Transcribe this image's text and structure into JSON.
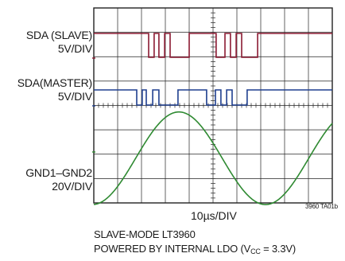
{
  "chart_data": {
    "type": "line",
    "title": "",
    "grid": true,
    "grid_divisions": {
      "x": 10,
      "y": 8
    },
    "xlabel": "10µs/DIV",
    "x_per_div_us": 10,
    "x_range_us": [
      0,
      100
    ],
    "figure_tag": "3960 TA01b",
    "caption_line1": "SLAVE-MODE LT3960",
    "caption_line2_prefix": "POWERED BY INTERNAL LDO (V",
    "caption_line2_sub": "CC",
    "caption_line2_suffix": " = 3.3V)",
    "series": [
      {
        "name": "SDA (SLAVE)",
        "scale": "5V/DIV",
        "color": "#8b1a32",
        "x": [
          0,
          23,
          23,
          25.3,
          25.3,
          27.3,
          27.3,
          29.7,
          29.7,
          32,
          32,
          40,
          40,
          51.3,
          51.3,
          55,
          55,
          57.3,
          57.3,
          59.7,
          59.7,
          62,
          62,
          68.7,
          68.7,
          70.7,
          70.7,
          100
        ],
        "values": [
          1,
          1,
          0,
          0,
          1,
          1,
          0,
          0,
          1,
          1,
          0,
          0,
          1,
          1,
          0,
          0,
          1,
          1,
          0,
          0,
          1,
          1,
          0,
          0,
          1,
          1,
          1,
          1
        ]
      },
      {
        "name": "SDA(MASTER)",
        "scale": "5V/DIV",
        "color": "#1f3f8f",
        "x": [
          0,
          18,
          18,
          20.3,
          20.3,
          22,
          22,
          24.7,
          24.7,
          27.3,
          27.3,
          35.3,
          35.3,
          47.3,
          47.3,
          51,
          51,
          53.3,
          53.3,
          55.7,
          55.7,
          58,
          58,
          64.3,
          64.3,
          67,
          67,
          100
        ],
        "values": [
          1,
          1,
          0,
          0,
          1,
          1,
          0,
          0,
          1,
          1,
          0,
          0,
          1,
          1,
          0,
          0,
          1,
          1,
          0,
          0,
          1,
          1,
          0,
          0,
          1,
          1,
          1,
          1
        ]
      },
      {
        "name": "GND1–GND2",
        "scale": "20V/DIV",
        "color": "#2f8a32",
        "waveform": "sine",
        "peak_x_us": 35.7,
        "period_us": 72.6,
        "amplitude_div": 1.9
      }
    ]
  }
}
